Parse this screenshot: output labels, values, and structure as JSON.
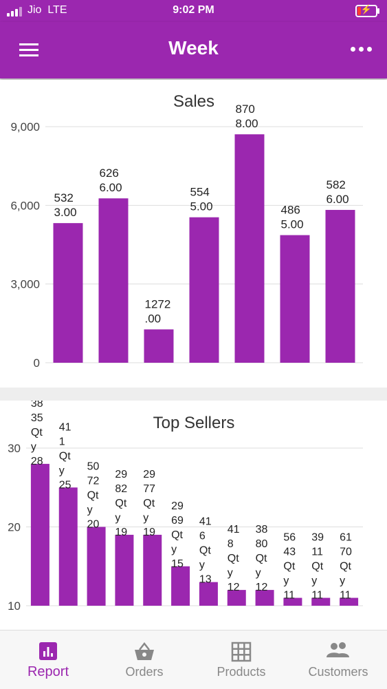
{
  "status_bar": {
    "carrier": "Jio  LTE",
    "time": "9:02 PM"
  },
  "app_bar": {
    "title": "Week",
    "menu_icon": "hamburger-menu-icon",
    "more_icon": "more-horizontal-icon"
  },
  "colors": {
    "primary": "#9b27af",
    "inactive": "#888888"
  },
  "chart_data": [
    {
      "type": "bar",
      "title": "Sales",
      "categories": [
        "",
        "",
        "",
        "",
        "",
        "",
        ""
      ],
      "values": [
        5323.0,
        6266.0,
        1272.0,
        5545.0,
        8708.0,
        4865.0,
        5826.0
      ],
      "data_labels": [
        [
          "532",
          "3.00"
        ],
        [
          "626",
          "6.00"
        ],
        [
          "1272",
          ".00"
        ],
        [
          "554",
          "5.00"
        ],
        [
          "870",
          "8.00"
        ],
        [
          "486",
          "5.00"
        ],
        [
          "582",
          "6.00"
        ]
      ],
      "y_ticks": [
        0,
        3000,
        6000,
        9000
      ],
      "y_tick_labels": [
        "0",
        "3,000",
        "6,000",
        "9,000"
      ],
      "ylim": [
        0,
        9000
      ],
      "grid": true
    },
    {
      "type": "bar",
      "title": "Top Sellers",
      "categories": [
        "3835",
        "411",
        "5072",
        "2982",
        "2977",
        "2969",
        "416",
        "418",
        "3880",
        "5643",
        "3911",
        "6170"
      ],
      "values": [
        28,
        25,
        20,
        19,
        19,
        15,
        13,
        12,
        12,
        11,
        11,
        11
      ],
      "data_labels": [
        [
          "38",
          "35",
          "Qt",
          "y",
          "28"
        ],
        [
          "41",
          "1",
          "Qt",
          "y",
          "25"
        ],
        [
          "50",
          "72",
          "Qt",
          "y",
          "20"
        ],
        [
          "29",
          "82",
          "Qt",
          "y",
          "19"
        ],
        [
          "29",
          "77",
          "Qt",
          "y",
          "19"
        ],
        [
          "29",
          "69",
          "Qt",
          "y",
          "15"
        ],
        [
          "41",
          "6",
          "Qt",
          "y",
          "13"
        ],
        [
          "41",
          "8",
          "Qt",
          "y",
          "12"
        ],
        [
          "38",
          "80",
          "Qt",
          "y",
          "12"
        ],
        [
          "56",
          "43",
          "Qt",
          "y",
          "11"
        ],
        [
          "39",
          "11",
          "Qt",
          "y",
          "11"
        ],
        [
          "61",
          "70",
          "Qt",
          "y",
          "11"
        ]
      ],
      "y_ticks": [
        10,
        20,
        30
      ],
      "y_tick_labels": [
        "10",
        "20",
        "30"
      ],
      "grid": true
    }
  ],
  "bottom_nav": [
    {
      "label": "Report",
      "icon": "bar-chart-icon",
      "active": true
    },
    {
      "label": "Orders",
      "icon": "basket-icon",
      "active": false
    },
    {
      "label": "Products",
      "icon": "grid-icon",
      "active": false
    },
    {
      "label": "Customers",
      "icon": "people-icon",
      "active": false
    }
  ]
}
